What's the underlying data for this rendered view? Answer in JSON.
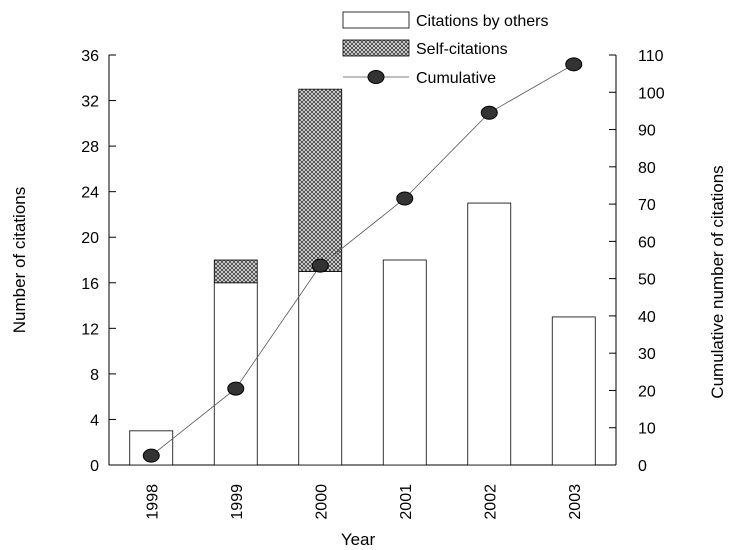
{
  "chart_data": {
    "type": "bar",
    "categories": [
      "1998",
      "1999",
      "2000",
      "2001",
      "2002",
      "2003"
    ],
    "series": [
      {
        "name": "Citations by others",
        "type": "bar",
        "axis": "left",
        "values": [
          3,
          16,
          17,
          18,
          23,
          13
        ]
      },
      {
        "name": "Self-citations",
        "type": "stacked-bar",
        "axis": "left",
        "values": [
          0,
          2,
          16,
          0,
          0,
          0
        ]
      },
      {
        "name": "Cumulative",
        "type": "line",
        "axis": "right",
        "values": [
          2.5,
          20.5,
          53.5,
          71.5,
          94.5,
          107.5
        ]
      }
    ],
    "xlabel": "Year",
    "ylabel": "Number of citations",
    "y2label": "Cumulative number of citations",
    "ylim": [
      0,
      36
    ],
    "yticks": [
      "0",
      "4",
      "8",
      "12",
      "16",
      "20",
      "24",
      "28",
      "32",
      "36"
    ],
    "y2lim": [
      0,
      110
    ],
    "y2ticks": [
      "0",
      "10",
      "20",
      "30",
      "40",
      "50",
      "60",
      "70",
      "80",
      "90",
      "100",
      "110"
    ],
    "legend_position": "top-center",
    "grid": false
  }
}
